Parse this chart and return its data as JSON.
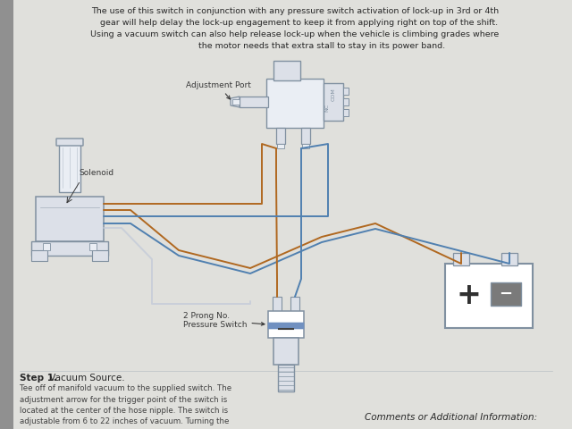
{
  "bg_color": "#c8c8c8",
  "paper_color": "#e0e0dc",
  "title_text": "The use of this switch in conjunction with any pressure switch activation of lock-up in 3rd or 4th\n   gear will help delay the lock-up engagement to keep it from applying right on top of the shift.\nUsing a vacuum switch can also help release lock-up when the vehicle is climbing grades where\n                    the motor needs that extra stall to stay in its power band.",
  "step1_bold": "Step 1.",
  "step1_text": " Vacuum Source.",
  "step1_body": "Tee off of manifold vacuum to the supplied switch. The\nadjustment arrow for the trigger point of the switch is\nlocated at the center of the hose nipple. The switch is\nadjustable from 6 to 22 inches of vacuum. Turning the",
  "comments_text": "Comments or Additional Information:",
  "wire_color_orange": "#b06820",
  "wire_color_blue": "#5080b0",
  "wire_color_light": "#c0c8d8",
  "component_fill": "#dce0e8",
  "component_edge": "#8090a0",
  "component_light": "#eaeef4",
  "text_color": "#282828",
  "label_color": "#383838",
  "fold_color": "#909090"
}
